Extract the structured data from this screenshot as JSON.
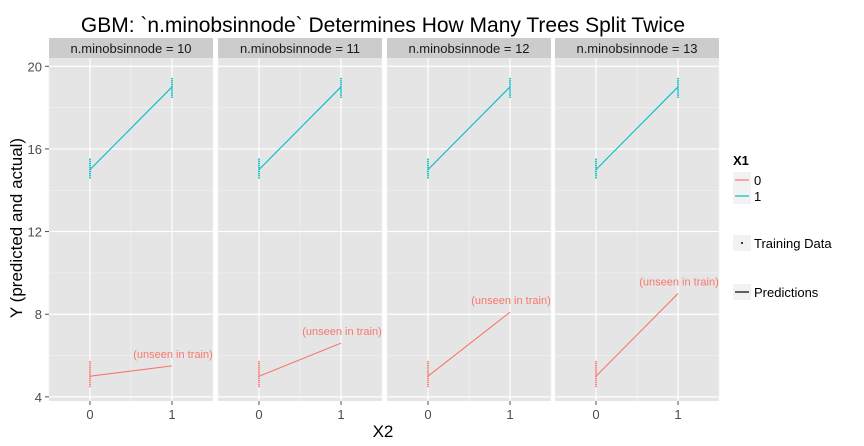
{
  "colors": {
    "series_0": "#F8766D",
    "series_1": "#00BFC4",
    "panel_bg": "#E5E5E5",
    "strip_bg": "#CCCCCC",
    "grid": "#FFFFFF"
  },
  "chart_data": {
    "type": "line",
    "title": "GBM: `n.minobsinnode` Determines How Many Trees Split Twice",
    "xlabel": "X2",
    "ylabel": "Y (predicted and actual)",
    "x_ticks": [
      "0",
      "1"
    ],
    "y_ticks": [
      "4",
      "8",
      "12",
      "16",
      "20"
    ],
    "xlim": [
      -0.5,
      1.5
    ],
    "ylim": [
      3.8,
      20.4
    ],
    "grid": true,
    "legend": {
      "position": "right",
      "title": "X1",
      "entries": [
        "0",
        "1"
      ],
      "training_label": "Training Data",
      "predictions_label": "Predictions"
    },
    "annotation_text": "(unseen in train)",
    "panels": [
      {
        "label": "n.minobsinnode = 10",
        "series": [
          {
            "name": "0",
            "x": [
              0,
              1
            ],
            "y": [
              5.0,
              5.5
            ]
          },
          {
            "name": "1",
            "x": [
              0,
              1
            ],
            "y": [
              15.0,
              19.0
            ]
          }
        ]
      },
      {
        "label": "n.minobsinnode = 11",
        "series": [
          {
            "name": "0",
            "x": [
              0,
              1
            ],
            "y": [
              5.0,
              6.6
            ]
          },
          {
            "name": "1",
            "x": [
              0,
              1
            ],
            "y": [
              15.0,
              19.0
            ]
          }
        ]
      },
      {
        "label": "n.minobsinnode = 12",
        "series": [
          {
            "name": "0",
            "x": [
              0,
              1
            ],
            "y": [
              5.0,
              8.1
            ]
          },
          {
            "name": "1",
            "x": [
              0,
              1
            ],
            "y": [
              15.0,
              19.0
            ]
          }
        ]
      },
      {
        "label": "n.minobsinnode = 13",
        "series": [
          {
            "name": "0",
            "x": [
              0,
              1
            ],
            "y": [
              5.0,
              9.0
            ]
          },
          {
            "name": "1",
            "x": [
              0,
              1
            ],
            "y": [
              15.0,
              19.0
            ]
          }
        ]
      }
    ],
    "training_data": [
      {
        "series": "0",
        "x": 0,
        "y": [
          4.5,
          4.6,
          4.7,
          4.8,
          4.9,
          5.0,
          5.1,
          5.2,
          5.3,
          5.4,
          5.5,
          5.6,
          5.7
        ]
      },
      {
        "series": "1",
        "x": 0,
        "y": [
          14.6,
          14.7,
          14.8,
          14.9,
          15.0,
          15.1,
          15.2,
          15.3,
          15.4,
          15.5
        ]
      },
      {
        "series": "1",
        "x": 1,
        "y": [
          18.5,
          18.6,
          18.7,
          18.8,
          18.9,
          19.0,
          19.1,
          19.2,
          19.3,
          19.4
        ]
      }
    ]
  }
}
